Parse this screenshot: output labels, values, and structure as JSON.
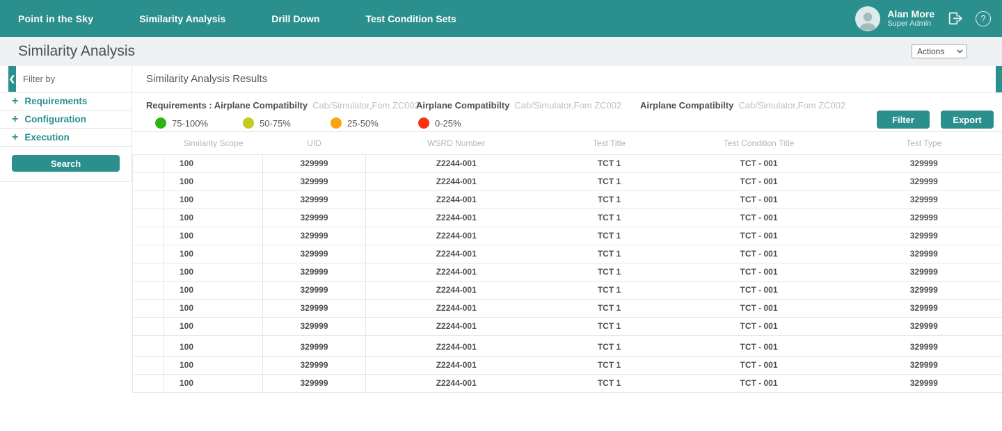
{
  "colors": {
    "accent": "#2B8F8E"
  },
  "nav": {
    "brand": "Point in the Sky",
    "items": [
      {
        "label": "Similarity Analysis"
      },
      {
        "label": "Drill Down"
      },
      {
        "label": "Test Condition Sets"
      }
    ],
    "user": {
      "name": "Alan More",
      "role": "Super Admin"
    }
  },
  "page": {
    "title": "Similarity Analysis",
    "actions_label": "Actions"
  },
  "sidebar": {
    "title": "Filter by",
    "items": [
      {
        "label": "Requirements"
      },
      {
        "label": "Configuration"
      },
      {
        "label": "Execution"
      }
    ],
    "search_label": "Search"
  },
  "results": {
    "title": "Similarity Analysis Results",
    "requirements": [
      {
        "label": "Requirements : Airplane Compatibilty",
        "value": "Cab/Simulator,Fom ZC002"
      },
      {
        "label": "Airplane Compatibilty",
        "value": "Cab/Simulator,Fom ZC002"
      },
      {
        "label": "Airplane Compatibilty",
        "value": "Cab/Simulator,Fom ZC002"
      }
    ],
    "legend": [
      {
        "label": "75-100%",
        "color": "#2CB412"
      },
      {
        "label": "50-75%",
        "color": "#C3CC1D"
      },
      {
        "label": "25-50%",
        "color": "#FCA40F"
      },
      {
        "label": "0-25%",
        "color": "#F8330D"
      }
    ],
    "filter_label": "Filter",
    "export_label": "Export",
    "table": {
      "columns": [
        "Similarity Scope",
        "UID",
        "WSRD Number",
        "Test Title",
        "Test Condition Title",
        "Test Type"
      ],
      "group_break_after": 10,
      "rows": [
        [
          "100",
          "329999",
          "Z2244-001",
          "TCT 1",
          "TCT - 001",
          "329999"
        ],
        [
          "100",
          "329999",
          "Z2244-001",
          "TCT 1",
          "TCT - 001",
          "329999"
        ],
        [
          "100",
          "329999",
          "Z2244-001",
          "TCT 1",
          "TCT - 001",
          "329999"
        ],
        [
          "100",
          "329999",
          "Z2244-001",
          "TCT 1",
          "TCT - 001",
          "329999"
        ],
        [
          "100",
          "329999",
          "Z2244-001",
          "TCT 1",
          "TCT - 001",
          "329999"
        ],
        [
          "100",
          "329999",
          "Z2244-001",
          "TCT 1",
          "TCT - 001",
          "329999"
        ],
        [
          "100",
          "329999",
          "Z2244-001",
          "TCT 1",
          "TCT - 001",
          "329999"
        ],
        [
          "100",
          "329999",
          "Z2244-001",
          "TCT 1",
          "TCT - 001",
          "329999"
        ],
        [
          "100",
          "329999",
          "Z2244-001",
          "TCT 1",
          "TCT - 001",
          "329999"
        ],
        [
          "100",
          "329999",
          "Z2244-001",
          "TCT 1",
          "TCT - 001",
          "329999"
        ],
        [
          "100",
          "329999",
          "Z2244-001",
          "TCT 1",
          "TCT - 001",
          "329999"
        ],
        [
          "100",
          "329999",
          "Z2244-001",
          "TCT 1",
          "TCT - 001",
          "329999"
        ],
        [
          "100",
          "329999",
          "Z2244-001",
          "TCT 1",
          "TCT - 001",
          "329999"
        ]
      ]
    }
  }
}
